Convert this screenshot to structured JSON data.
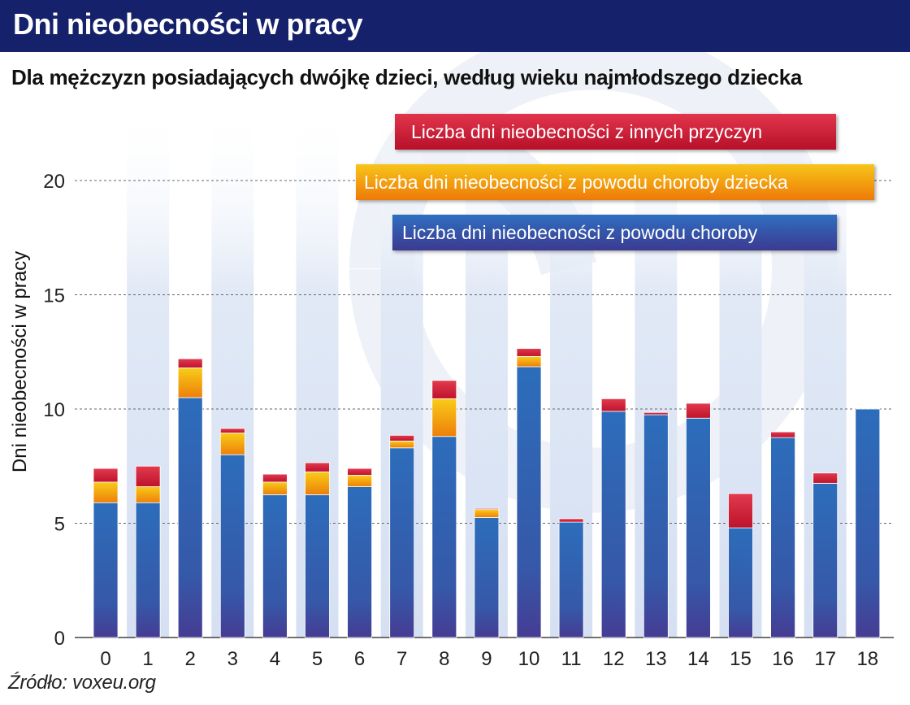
{
  "header": {
    "title": "Dni nieobecności w pracy"
  },
  "subtitle": "Dla mężczyzn posiadających dwójkę dzieci, według wieku najmłodszego dziecka",
  "source": "Źródło: voxeu.org",
  "colors": {
    "header_bg": "#15226b",
    "illness": "#2e6cb8",
    "child_illness": "#f2a50d",
    "other": "#d21f35",
    "stripe": "#e3ebf7",
    "watermark": "#e8ecf4"
  },
  "chart_data": {
    "type": "bar",
    "stacked": true,
    "categories": [
      "0",
      "1",
      "2",
      "3",
      "4",
      "5",
      "6",
      "7",
      "8",
      "9",
      "10",
      "11",
      "12",
      "13",
      "14",
      "15",
      "16",
      "17",
      "18"
    ],
    "series": [
      {
        "name": "Liczba dni nieobecności z powodu choroby",
        "values": [
          5.9,
          5.9,
          10.5,
          8.0,
          6.25,
          6.25,
          6.6,
          8.3,
          8.8,
          5.25,
          11.85,
          5.05,
          9.9,
          9.75,
          9.6,
          4.8,
          8.75,
          6.75,
          10.0
        ]
      },
      {
        "name": "Liczba dni nieobecności z powodu choroby dziecka",
        "values": [
          0.9,
          0.7,
          1.3,
          0.95,
          0.55,
          1.0,
          0.5,
          0.3,
          1.65,
          0.35,
          0.45,
          0.0,
          0.0,
          0.0,
          0.0,
          0.0,
          0.0,
          0.0,
          0.0
        ]
      },
      {
        "name": "Liczba dni nieobecności z innych przyczyn",
        "values": [
          0.6,
          0.9,
          0.4,
          0.2,
          0.35,
          0.4,
          0.3,
          0.25,
          0.8,
          0.05,
          0.35,
          0.15,
          0.55,
          0.1,
          0.65,
          1.5,
          0.25,
          0.45,
          0.0
        ]
      }
    ],
    "xlabel": "",
    "ylabel": "Dni nieobecności w pracy",
    "ylim": [
      0,
      20
    ],
    "yticks": [
      0,
      5,
      10,
      15,
      20
    ],
    "grid": true,
    "legend_placement": "top-right"
  }
}
